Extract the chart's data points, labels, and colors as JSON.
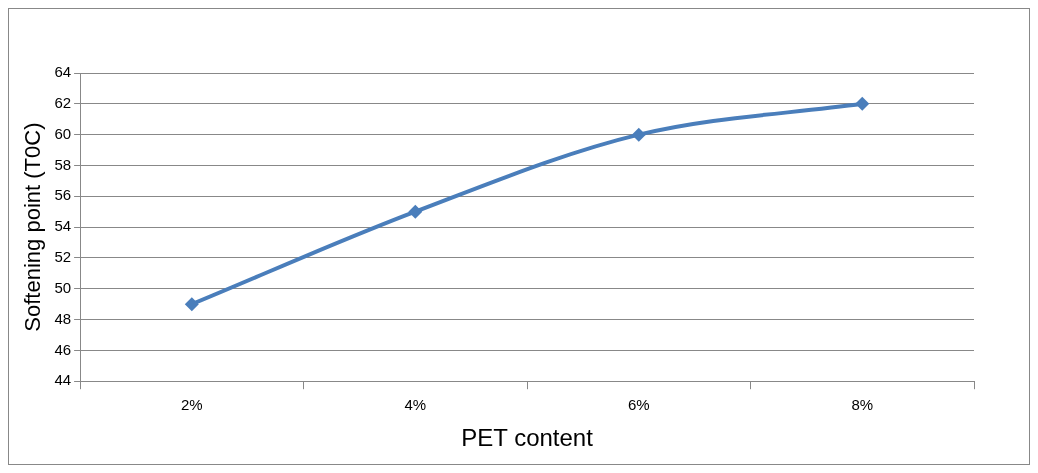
{
  "chart_data": {
    "type": "line",
    "xlabel": "PET content",
    "ylabel": "Softening point (T0C)",
    "categories": [
      "2%",
      "4%",
      "6%",
      "8%"
    ],
    "series": [
      {
        "color": "#4a7ebb",
        "values": [
          49,
          55,
          60,
          62
        ]
      }
    ],
    "ylim": [
      44,
      64
    ],
    "yticks": [
      44,
      46,
      48,
      50,
      52,
      54,
      56,
      58,
      60,
      62,
      64
    ],
    "grid": "y",
    "legend": false,
    "marker": "diamond",
    "line_style": "solid"
  }
}
